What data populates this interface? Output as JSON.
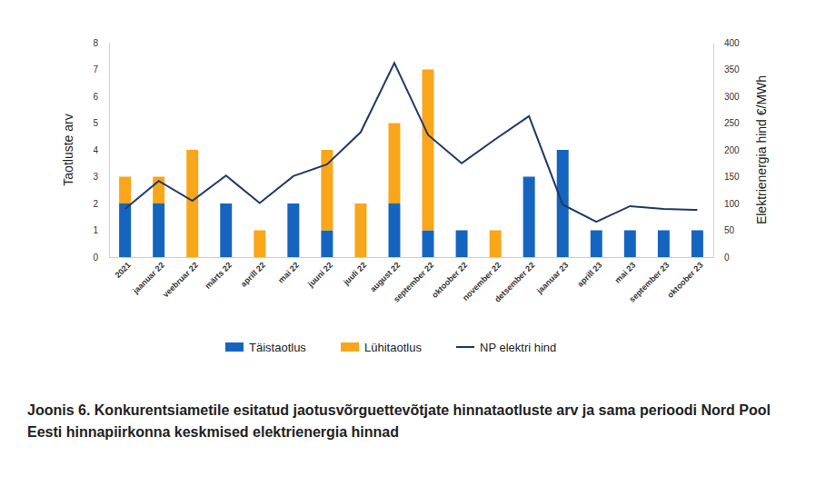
{
  "chart_data": {
    "type": "bar",
    "title": "Joonis 6. Konkurentsiametile esitatud jaotusvõrguettevõtjate hinnataotluste arv ja sama perioodi Nord Pool Eesti hinnapiirkonna keskmised elektrienergia hinnad",
    "y_label": "Taotluste arv",
    "y2_label": "Elektrienergia hind €/MWh",
    "categories": [
      "2021",
      "jaanuar 22",
      "veebruar 22",
      "märts 22",
      "aprill 22",
      "mai 22",
      "juuni 22",
      "juuli 22",
      "august 22",
      "september 22",
      "oktoober 22",
      "november 22",
      "detsember 22",
      "jaanuar 23",
      "aprill 23",
      "mai 23",
      "september 23",
      "oktoober 23"
    ],
    "series": [
      {
        "name": "Täistaotlus",
        "type": "bar",
        "color": "#1565c0",
        "values": [
          2,
          2,
          0,
          2,
          0,
          2,
          1,
          0,
          2,
          1,
          1,
          0,
          3,
          4,
          1,
          1,
          1,
          1
        ]
      },
      {
        "name": "Lühitaotlus",
        "type": "bar",
        "color": "#f9a61a",
        "values": [
          1,
          1,
          4,
          0,
          1,
          0,
          3,
          2,
          3,
          6,
          0,
          1,
          0,
          0,
          0,
          0,
          0,
          0
        ]
      },
      {
        "name": "NP elektri hind",
        "type": "line",
        "axis": "y2",
        "color": "#1f3a68",
        "values": [
          90,
          142,
          105,
          152,
          101,
          151,
          173,
          233,
          362,
          228,
          175,
          220,
          263,
          98,
          66,
          95,
          90,
          88
        ]
      }
    ],
    "stacked": true,
    "grid": false,
    "legend": "bottom",
    "ylim": [
      0,
      8
    ],
    "yticks": [
      0,
      1,
      2,
      3,
      4,
      5,
      6,
      7,
      8
    ],
    "y2lim": [
      0,
      400
    ],
    "y2ticks": [
      0,
      50,
      100,
      150,
      200,
      250,
      300,
      350,
      400
    ]
  }
}
